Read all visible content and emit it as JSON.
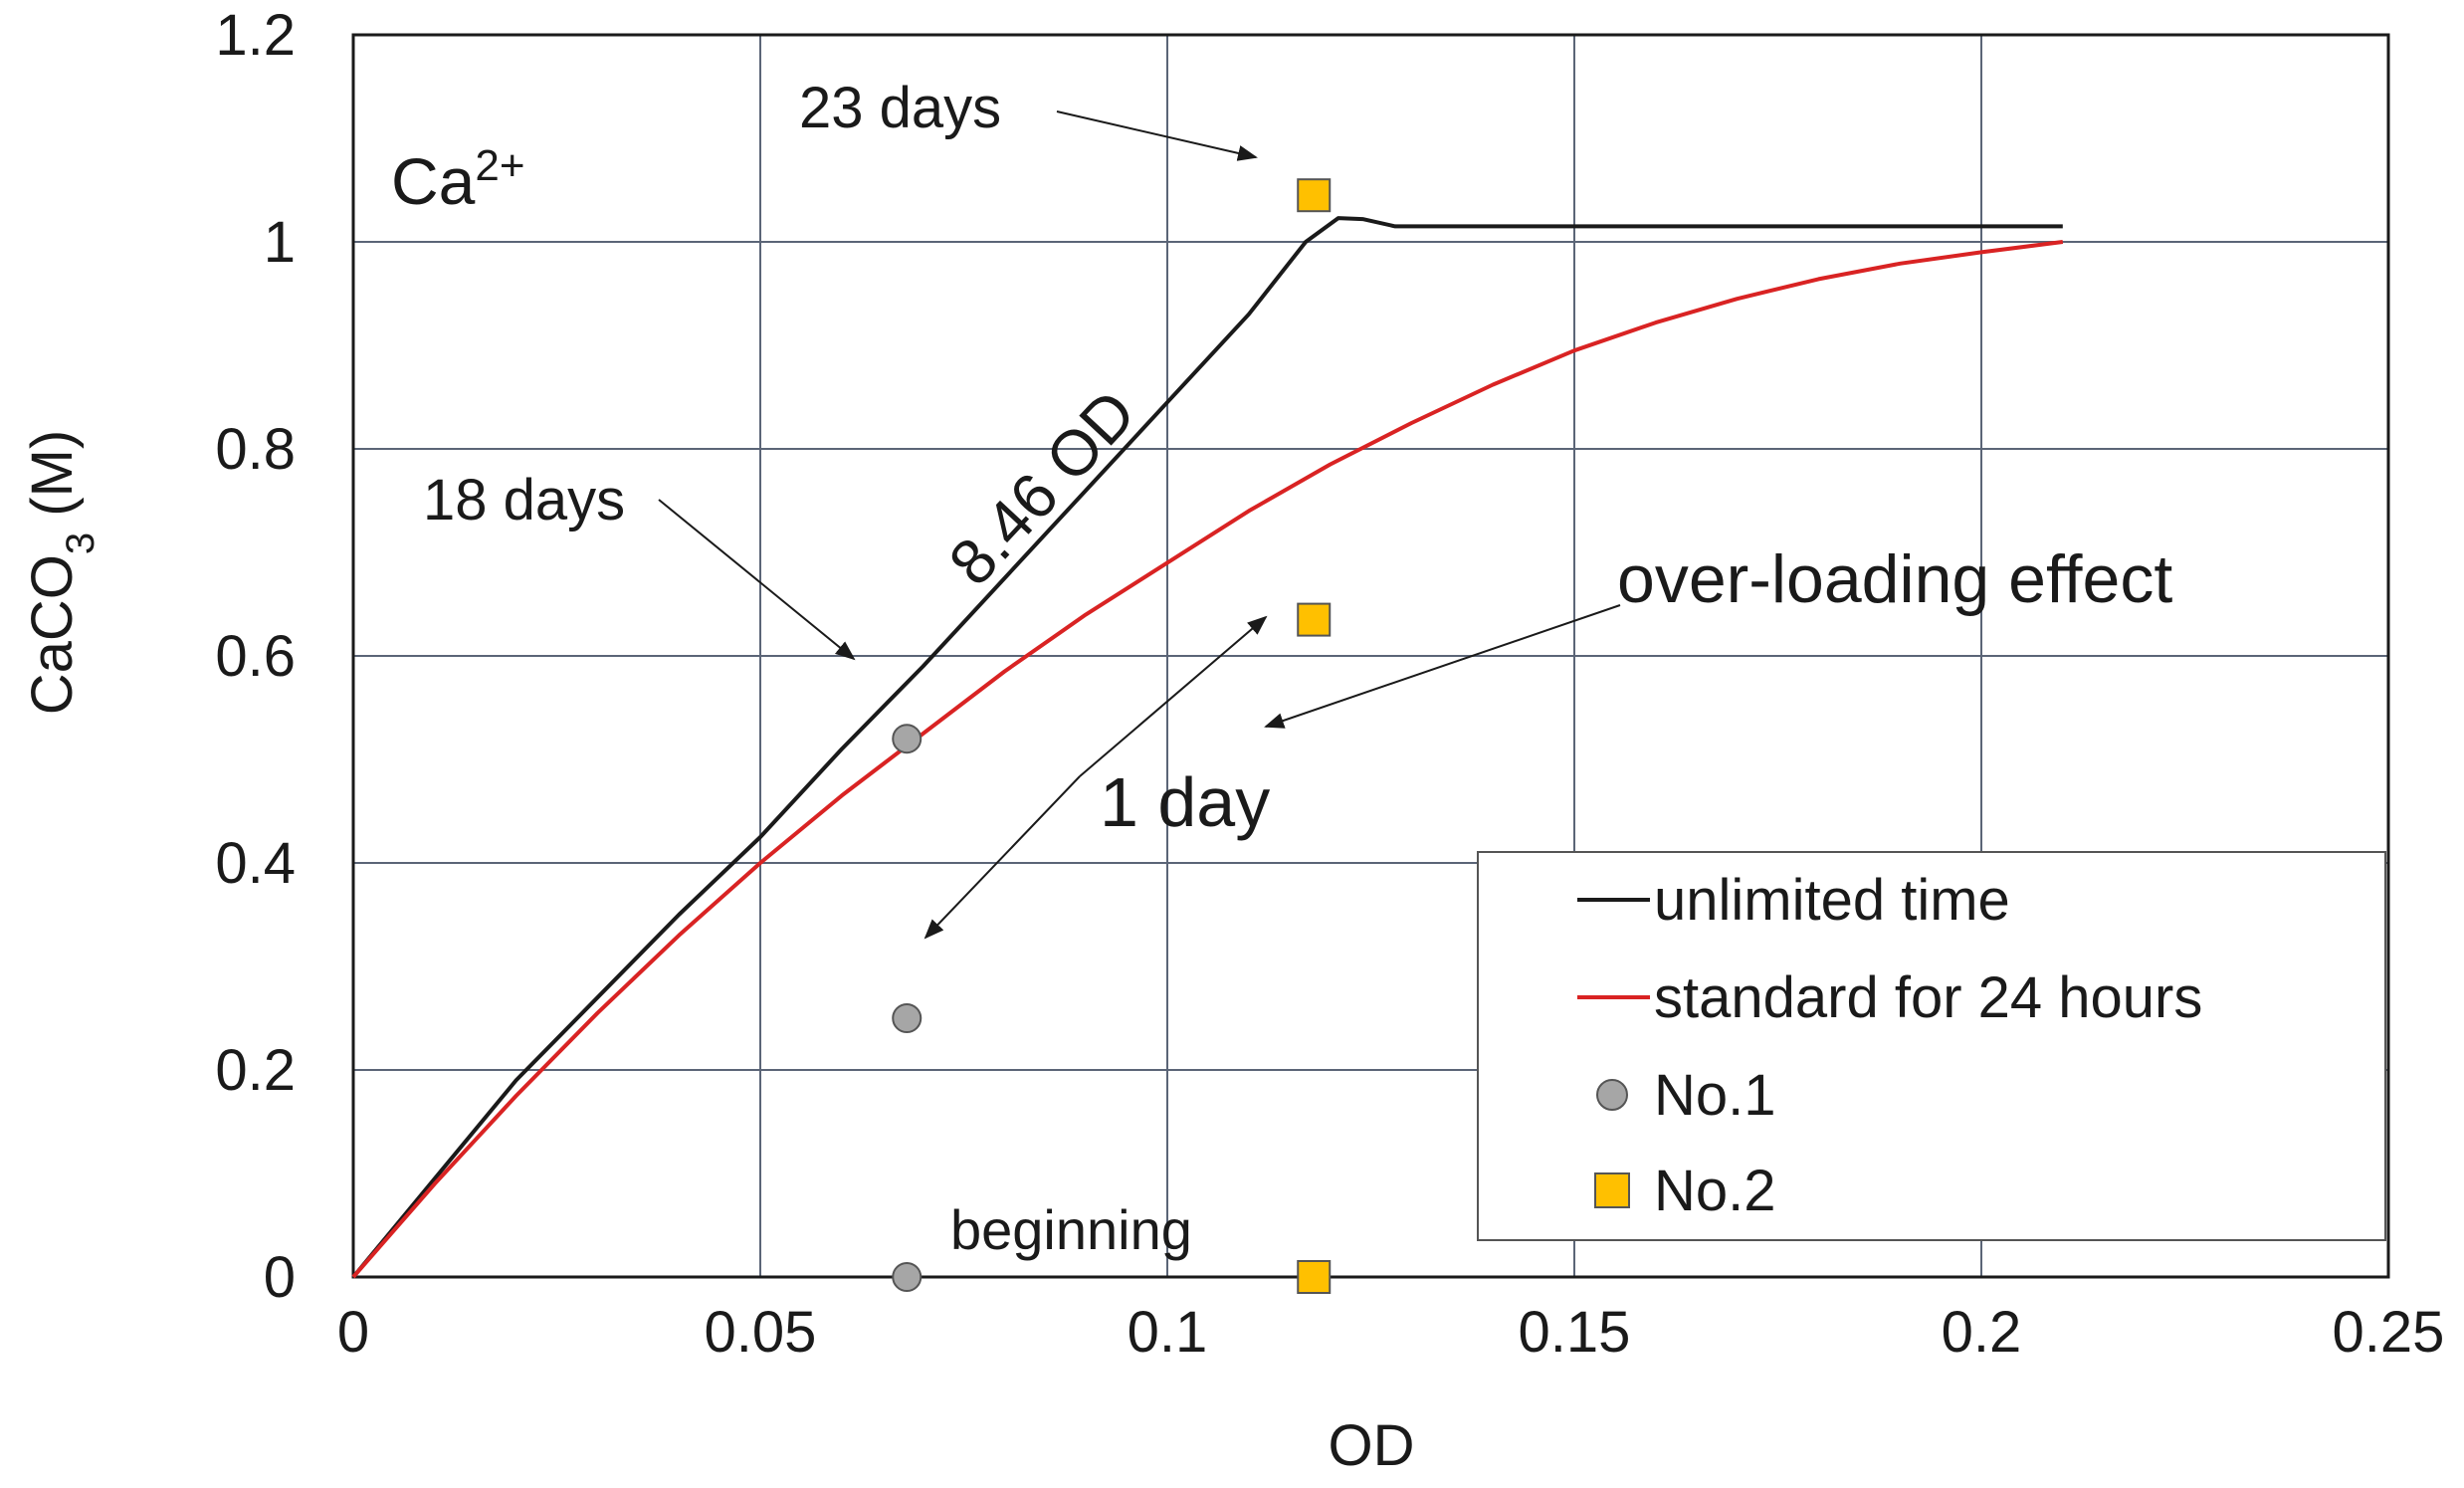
{
  "chart_data": {
    "type": "line",
    "title": "",
    "xlabel": "OD",
    "ylabel_main": "CaCO",
    "ylabel_sub": "3",
    "ylabel_unit": " (M)",
    "xlim": [
      0,
      0.25
    ],
    "ylim": [
      0,
      1.2
    ],
    "x_ticks": [
      0,
      0.05,
      0.1,
      0.15,
      0.2,
      0.25
    ],
    "x_tick_labels": [
      "0",
      "0.05",
      "0.1",
      "0.15",
      "0.2",
      "0.25"
    ],
    "y_ticks": [
      0,
      0.2,
      0.4,
      0.6,
      0.8,
      1.0,
      1.2
    ],
    "y_tick_labels": [
      "0",
      "0.2",
      "0.4",
      "0.6",
      "0.8",
      "1",
      "1.2"
    ],
    "grid": true,
    "series": [
      {
        "name": "unlimited time",
        "kind": "line",
        "color": "#1a1a1a",
        "points": [
          [
            0,
            0
          ],
          [
            0.01,
            0.095
          ],
          [
            0.02,
            0.19
          ],
          [
            0.03,
            0.27
          ],
          [
            0.04,
            0.35
          ],
          [
            0.05,
            0.425
          ],
          [
            0.06,
            0.51
          ],
          [
            0.07,
            0.59
          ],
          [
            0.08,
            0.675
          ],
          [
            0.09,
            0.76
          ],
          [
            0.1,
            0.845
          ],
          [
            0.11,
            0.93
          ],
          [
            0.117,
            1.0
          ],
          [
            0.121,
            1.023
          ],
          [
            0.124,
            1.022
          ],
          [
            0.128,
            1.015
          ],
          [
            0.15,
            1.015
          ],
          [
            0.18,
            1.015
          ],
          [
            0.21,
            1.015
          ]
        ]
      },
      {
        "name": "standard for 24 hours",
        "kind": "line",
        "color": "#d92323",
        "points": [
          [
            0,
            0
          ],
          [
            0.01,
            0.09
          ],
          [
            0.02,
            0.175
          ],
          [
            0.03,
            0.255
          ],
          [
            0.04,
            0.33
          ],
          [
            0.05,
            0.4
          ],
          [
            0.06,
            0.465
          ],
          [
            0.07,
            0.525
          ],
          [
            0.08,
            0.585
          ],
          [
            0.09,
            0.64
          ],
          [
            0.1,
            0.69
          ],
          [
            0.11,
            0.74
          ],
          [
            0.12,
            0.785
          ],
          [
            0.13,
            0.825
          ],
          [
            0.14,
            0.862
          ],
          [
            0.15,
            0.895
          ],
          [
            0.16,
            0.922
          ],
          [
            0.17,
            0.945
          ],
          [
            0.18,
            0.964
          ],
          [
            0.19,
            0.979
          ],
          [
            0.2,
            0.99
          ],
          [
            0.21,
            1.0
          ]
        ]
      },
      {
        "name": "No.1",
        "kind": "marker",
        "marker": "circle",
        "color": "#a6a6a6",
        "points": [
          [
            0.068,
            0.0
          ],
          [
            0.068,
            0.25
          ],
          [
            0.068,
            0.52
          ]
        ]
      },
      {
        "name": "No.2",
        "kind": "marker",
        "marker": "square",
        "color": "#ffc000",
        "points": [
          [
            0.118,
            0.0
          ],
          [
            0.118,
            0.635
          ],
          [
            0.118,
            1.045
          ]
        ]
      }
    ],
    "legend": {
      "position": "bottom-right",
      "entries": [
        "unlimited time",
        "standard for 24 hours",
        "No.1",
        "No.2"
      ]
    },
    "annotations": {
      "ion_label": "Ca",
      "ion_charge": "2+",
      "slope_label": "8.46 OD",
      "overload_label": "over-loading effect",
      "one_day_label": "1 day",
      "days_23_label": "23 days",
      "days_18_label": "18 days",
      "beginning_label": "beginning"
    }
  }
}
